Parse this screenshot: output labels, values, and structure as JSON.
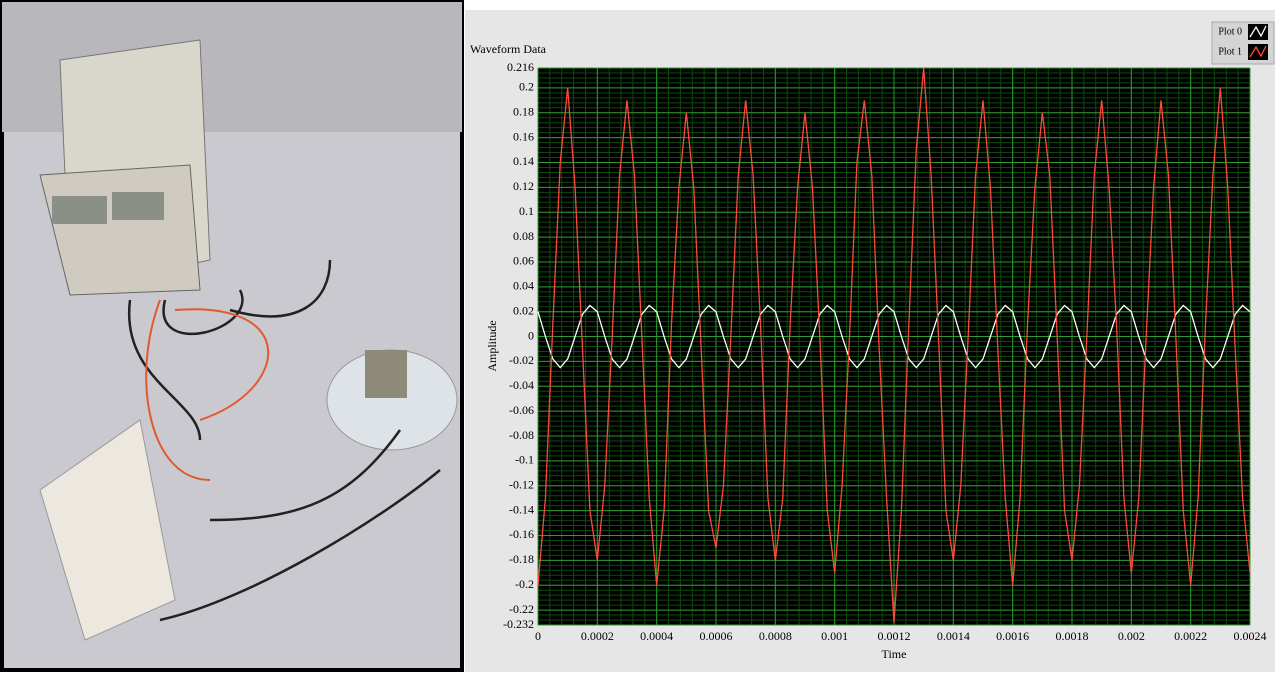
{
  "chart_data": {
    "type": "line",
    "title": "Waveform Data",
    "y_label": "Amplitude",
    "x_label": "Time",
    "xlim": [
      0,
      0.0024
    ],
    "xticks": [
      0,
      0.0002,
      0.0004,
      0.0006,
      0.0008,
      0.001,
      0.0012,
      0.0014,
      0.0016,
      0.0018,
      0.002,
      0.0022,
      0.0024
    ],
    "ylim": [
      -0.232,
      0.216
    ],
    "yticks": [
      0.216,
      0.2,
      0.18,
      0.16,
      0.14,
      0.12,
      0.1,
      0.08,
      0.06,
      0.04,
      0.02,
      0,
      -0.02,
      -0.04,
      -0.06,
      -0.08,
      -0.1,
      -0.12,
      -0.14,
      -0.16,
      -0.18,
      -0.2,
      -0.22,
      -0.232
    ],
    "grid": true,
    "legend": "top-right",
    "x": [
      0,
      2.5e-05,
      5e-05,
      7.5e-05,
      0.0001,
      0.000125,
      0.00015,
      0.000175,
      0.0002,
      0.000225,
      0.00025,
      0.000275,
      0.0003,
      0.000325,
      0.00035,
      0.000375,
      0.0004,
      0.000425,
      0.00045,
      0.000475,
      0.0005,
      0.000525,
      0.00055,
      0.000575,
      0.0006,
      0.000625,
      0.00065,
      0.000675,
      0.0007,
      0.000725,
      0.00075,
      0.000775,
      0.0008,
      0.000825,
      0.00085,
      0.000875,
      0.0009,
      0.000925,
      0.00095,
      0.000975,
      0.001,
      0.001025,
      0.00105,
      0.001075,
      0.0011,
      0.001125,
      0.00115,
      0.001175,
      0.0012,
      0.001225,
      0.00125,
      0.001275,
      0.0013,
      0.001325,
      0.00135,
      0.001375,
      0.0014,
      0.001425,
      0.00145,
      0.001475,
      0.0015,
      0.001525,
      0.00155,
      0.001575,
      0.0016,
      0.001625,
      0.00165,
      0.001675,
      0.0017,
      0.001725,
      0.00175,
      0.001775,
      0.0018,
      0.001825,
      0.00185,
      0.001875,
      0.0019,
      0.001925,
      0.00195,
      0.001975,
      0.002,
      0.002025,
      0.00205,
      0.002075,
      0.0021,
      0.002125,
      0.00215,
      0.002175,
      0.0022,
      0.002225,
      0.00225,
      0.002275,
      0.0023,
      0.002325,
      0.00235,
      0.002375,
      0.0024
    ],
    "series": [
      {
        "name": "Plot 0",
        "color": "#ffffff",
        "values": [
          0.02,
          0,
          -0.018,
          -0.025,
          -0.018,
          0,
          0.018,
          0.025,
          0.02,
          0,
          -0.018,
          -0.025,
          -0.018,
          0,
          0.018,
          0.025,
          0.02,
          0,
          -0.018,
          -0.025,
          -0.018,
          0,
          0.018,
          0.025,
          0.02,
          0,
          -0.018,
          -0.025,
          -0.018,
          0,
          0.018,
          0.025,
          0.02,
          0,
          -0.018,
          -0.025,
          -0.018,
          0,
          0.018,
          0.025,
          0.02,
          0,
          -0.018,
          -0.025,
          -0.018,
          0,
          0.018,
          0.025,
          0.02,
          0,
          -0.018,
          -0.025,
          -0.018,
          0,
          0.018,
          0.025,
          0.02,
          0,
          -0.018,
          -0.025,
          -0.018,
          0,
          0.018,
          0.025,
          0.02,
          0,
          -0.018,
          -0.025,
          -0.018,
          0,
          0.018,
          0.025,
          0.02,
          0,
          -0.018,
          -0.025,
          -0.018,
          0,
          0.018,
          0.025,
          0.02,
          0,
          -0.018,
          -0.025,
          -0.018,
          0,
          0.018,
          0.025,
          0.02,
          0,
          -0.018,
          -0.025,
          -0.018,
          0,
          0.018,
          0.025,
          0.02
        ]
      },
      {
        "name": "Plot 1",
        "color": "#ff4a3a",
        "values": [
          -0.2,
          -0.13,
          0.01,
          0.14,
          0.2,
          0.12,
          -0.01,
          -0.14,
          -0.18,
          -0.12,
          0,
          0.13,
          0.19,
          0.13,
          0,
          -0.13,
          -0.2,
          -0.14,
          0.01,
          0.12,
          0.18,
          0.12,
          -0.01,
          -0.14,
          -0.17,
          -0.12,
          0,
          0.13,
          0.19,
          0.13,
          0.01,
          -0.13,
          -0.18,
          -0.13,
          0.01,
          0.12,
          0.18,
          0.12,
          0,
          -0.14,
          -0.19,
          -0.12,
          0,
          0.14,
          0.19,
          0.13,
          -0.01,
          -0.13,
          -0.23,
          -0.14,
          0.01,
          0.15,
          0.216,
          0.13,
          0,
          -0.14,
          -0.18,
          -0.12,
          0,
          0.13,
          0.19,
          0.12,
          -0.01,
          -0.13,
          -0.2,
          -0.13,
          0.01,
          0.12,
          0.18,
          0.13,
          0,
          -0.14,
          -0.18,
          -0.12,
          0,
          0.13,
          0.19,
          0.12,
          0.01,
          -0.13,
          -0.19,
          -0.13,
          0,
          0.12,
          0.19,
          0.13,
          0,
          -0.14,
          -0.2,
          -0.13,
          0.01,
          0.13,
          0.2,
          0.12,
          -0.01,
          -0.13,
          -0.19
        ]
      }
    ]
  }
}
